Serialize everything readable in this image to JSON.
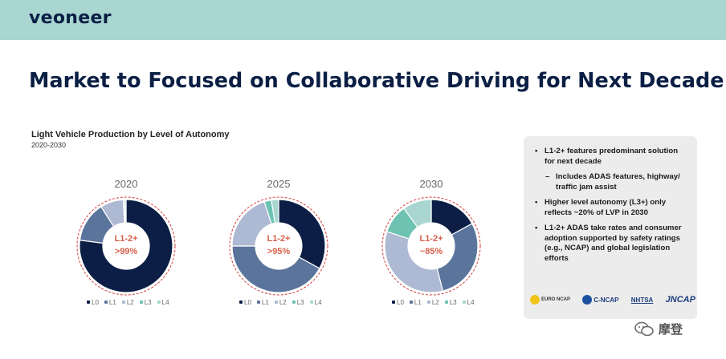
{
  "header": {
    "logo": "veoneer"
  },
  "title": "Market to Focused on Collaborative Driving for Next Decade",
  "chart_data": {
    "type": "pie",
    "title": "Light Vehicle Production by Level of Autonomy",
    "subtitle": "2020-2030",
    "legend": [
      "L0",
      "L1",
      "L2",
      "L3",
      "L4"
    ],
    "colors": [
      "#0c1e45",
      "#5b749b",
      "#aebad4",
      "#6ec2b2",
      "#a9d6d1"
    ],
    "charts": [
      {
        "year": "2020",
        "label_line1": "L1-2+",
        "label_line2": ">99%",
        "values": [
          77,
          14,
          8,
          0.5,
          0.5
        ]
      },
      {
        "year": "2025",
        "label_line1": "L1-2+",
        "label_line2": ">95%",
        "values": [
          33,
          42,
          20,
          2.5,
          2.5
        ]
      },
      {
        "year": "2030",
        "label_line1": "L1-2+",
        "label_line2": "~85%",
        "values": [
          17,
          29,
          34,
          10,
          10
        ]
      }
    ]
  },
  "panel": {
    "bullets": [
      {
        "text": "L1-2+ features predominant solution for next decade",
        "sub": "Includes ADAS features, highway/ traffic jam assist"
      },
      {
        "text": "Higher level autonomy (L3+) only reflects ~20% of LVP in 2030"
      },
      {
        "text": "L1-2+ ADAS take rates and consumer adoption supported by safety ratings (e.g., NCAP) and global legislation efforts"
      }
    ],
    "logos": [
      "EURO NCAP",
      "C-NCAP",
      "NHTSA",
      "JNCAP"
    ]
  },
  "watermark": "摩登"
}
